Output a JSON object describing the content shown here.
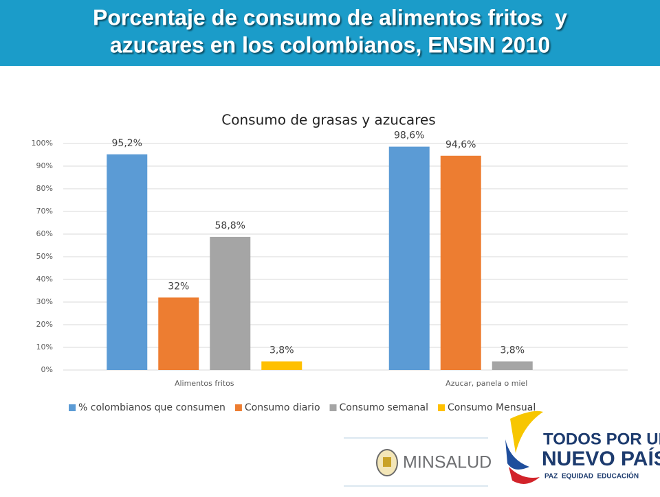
{
  "header": {
    "title_lines": [
      "Porcentaje de consumo de alimentos fritos  y",
      "azucares en los colombianos, ENSIN 2010"
    ]
  },
  "chart_data": {
    "type": "bar",
    "title": "Consumo de grasas y azucares",
    "categories": [
      "Alimentos fritos",
      "Azucar, panela o miel"
    ],
    "series": [
      {
        "name": "% colombianos que consumen",
        "color": "#5b9bd5",
        "values": [
          95.2,
          98.6
        ],
        "value_labels": [
          "95,2%",
          "98,6%"
        ]
      },
      {
        "name": "Consumo diario",
        "color": "#ed7d31",
        "values": [
          32,
          94.6
        ],
        "value_labels": [
          "32%",
          "94,6%"
        ]
      },
      {
        "name": "Consumo semanal",
        "color": "#a5a5a5",
        "values": [
          58.8,
          3.8
        ],
        "value_labels": [
          "58,8%",
          "3,8%"
        ]
      },
      {
        "name": "Consumo Mensual",
        "color": "#ffc000",
        "values": [
          3.8,
          null
        ],
        "value_labels": [
          "3,8%",
          null
        ]
      }
    ],
    "ylim": [
      0,
      100
    ],
    "yticks": [
      {
        "value": 0,
        "label": "0%"
      },
      {
        "value": 10,
        "label": "10%"
      },
      {
        "value": 20,
        "label": "20%"
      },
      {
        "value": 30,
        "label": "30%"
      },
      {
        "value": 40,
        "label": "40%"
      },
      {
        "value": 50,
        "label": "50%"
      },
      {
        "value": 60,
        "label": "60%"
      },
      {
        "value": 70,
        "label": "70%"
      },
      {
        "value": 80,
        "label": "80%"
      },
      {
        "value": 90,
        "label": "90%"
      },
      {
        "value": 100,
        "label": "100%"
      }
    ],
    "grid": true,
    "legend": "bottom"
  },
  "footer": {
    "left_logo": "MINSALUD",
    "right_logo": [
      "TODOS POR UN",
      "NUEVO PAÍS",
      "PAZ  EQUIDAD  EDUCACIÓN"
    ]
  }
}
